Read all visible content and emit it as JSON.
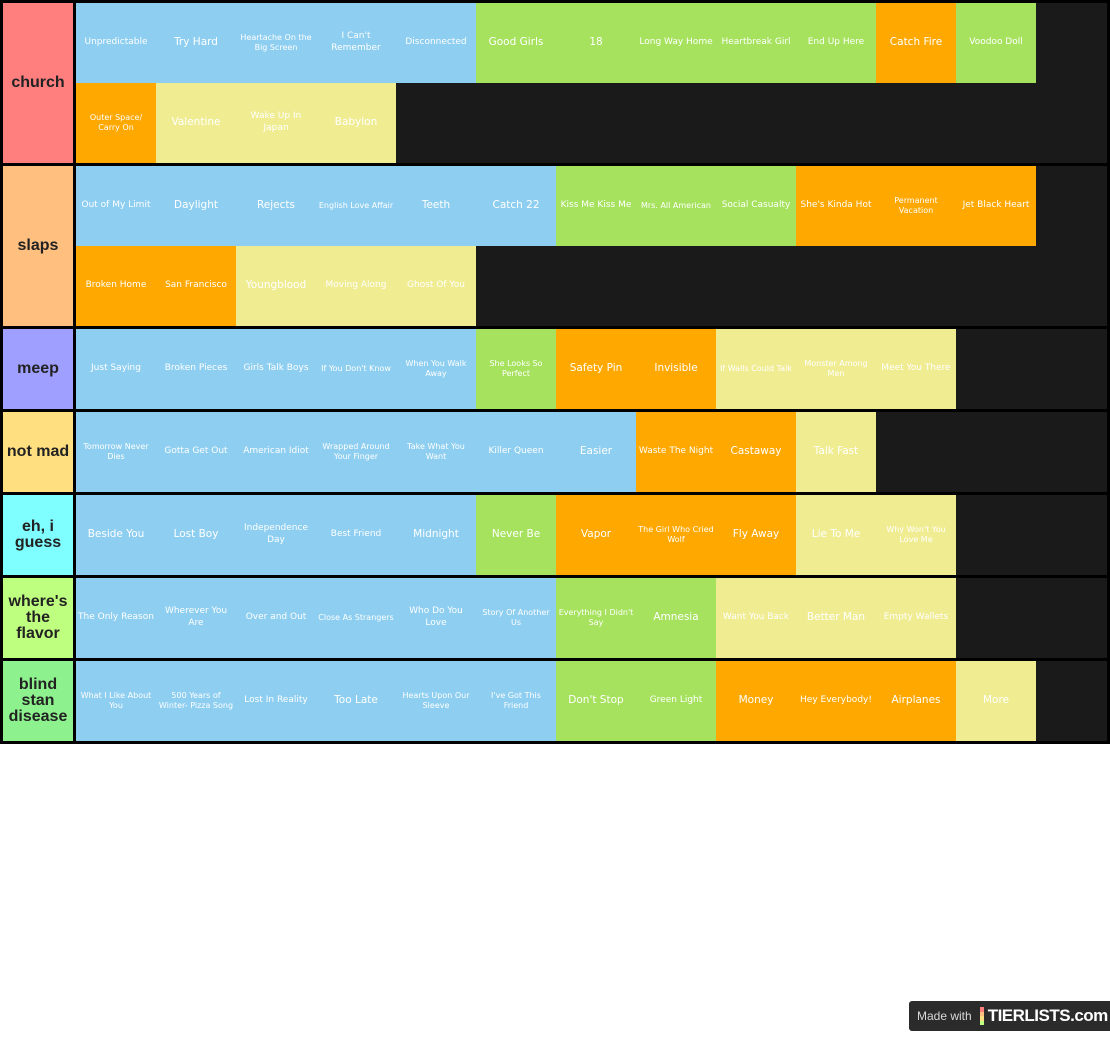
{
  "colors": {
    "blue": "#8ecef0",
    "green": "#a6e25e",
    "orange": "#fea800",
    "yellow": "#f0ec92"
  },
  "tiers": [
    {
      "label": "church",
      "color": "#ff7f7f",
      "items": [
        {
          "text": "Unpredictable",
          "color": "blue"
        },
        {
          "text": "Try Hard",
          "color": "blue"
        },
        {
          "text": "Heartache On the Big Screen",
          "color": "blue"
        },
        {
          "text": "I Can't Remember",
          "color": "blue"
        },
        {
          "text": "Disconnected",
          "color": "blue"
        },
        {
          "text": "Good Girls",
          "color": "green"
        },
        {
          "text": "18",
          "color": "green"
        },
        {
          "text": "Long Way Home",
          "color": "green"
        },
        {
          "text": "Heartbreak Girl",
          "color": "green"
        },
        {
          "text": "End Up Here",
          "color": "green"
        },
        {
          "text": "Catch Fire",
          "color": "orange"
        },
        {
          "text": "Voodoo Doll",
          "color": "green"
        },
        {
          "text": "Outer Space/ Carry On",
          "color": "orange"
        },
        {
          "text": "Valentine",
          "color": "yellow"
        },
        {
          "text": "Wake Up In Japan",
          "color": "yellow"
        },
        {
          "text": "Babylon",
          "color": "yellow"
        }
      ]
    },
    {
      "label": "slaps",
      "color": "#ffbf7f",
      "items": [
        {
          "text": "Out of My Limit",
          "color": "blue"
        },
        {
          "text": "Daylight",
          "color": "blue"
        },
        {
          "text": "Rejects",
          "color": "blue"
        },
        {
          "text": "English Love Affair",
          "color": "blue"
        },
        {
          "text": "Teeth",
          "color": "blue"
        },
        {
          "text": "Catch 22",
          "color": "blue"
        },
        {
          "text": "Kiss Me Kiss Me",
          "color": "green"
        },
        {
          "text": "Mrs. All American",
          "color": "green"
        },
        {
          "text": "Social Casualty",
          "color": "green"
        },
        {
          "text": "She's Kinda Hot",
          "color": "orange"
        },
        {
          "text": "Permanent Vacation",
          "color": "orange"
        },
        {
          "text": "Jet Black Heart",
          "color": "orange"
        },
        {
          "text": "Broken Home",
          "color": "orange"
        },
        {
          "text": "San Francisco",
          "color": "orange"
        },
        {
          "text": "Youngblood",
          "color": "yellow"
        },
        {
          "text": "Moving Along",
          "color": "yellow"
        },
        {
          "text": "Ghost Of You",
          "color": "yellow"
        }
      ]
    },
    {
      "label": "meep",
      "color": "#9f9fff",
      "items": [
        {
          "text": "Just Saying",
          "color": "blue"
        },
        {
          "text": "Broken Pieces",
          "color": "blue"
        },
        {
          "text": "Girls Talk Boys",
          "color": "blue"
        },
        {
          "text": "If You Don't Know",
          "color": "blue"
        },
        {
          "text": "When You Walk Away",
          "color": "blue"
        },
        {
          "text": "She Looks So Perfect",
          "color": "green"
        },
        {
          "text": "Safety Pin",
          "color": "orange"
        },
        {
          "text": "Invisible",
          "color": "orange"
        },
        {
          "text": "If Walls Could Talk",
          "color": "yellow"
        },
        {
          "text": "Monster Among Men",
          "color": "yellow"
        },
        {
          "text": "Meet You There",
          "color": "yellow"
        }
      ]
    },
    {
      "label": "not mad",
      "color": "#ffdf80",
      "items": [
        {
          "text": "Tomorrow Never Dies",
          "color": "blue"
        },
        {
          "text": "Gotta Get Out",
          "color": "blue"
        },
        {
          "text": "American Idiot",
          "color": "blue"
        },
        {
          "text": "Wrapped Around Your Finger",
          "color": "blue"
        },
        {
          "text": "Take What You Want",
          "color": "blue"
        },
        {
          "text": "Killer Queen",
          "color": "blue"
        },
        {
          "text": "Easier",
          "color": "blue"
        },
        {
          "text": "Waste The Night",
          "color": "orange"
        },
        {
          "text": "Castaway",
          "color": "orange"
        },
        {
          "text": "Talk Fast",
          "color": "yellow"
        }
      ]
    },
    {
      "label": "eh, i guess",
      "color": "#7fffff",
      "items": [
        {
          "text": "Beside You",
          "color": "blue"
        },
        {
          "text": "Lost Boy",
          "color": "blue"
        },
        {
          "text": "Independence Day",
          "color": "blue"
        },
        {
          "text": "Best Friend",
          "color": "blue"
        },
        {
          "text": "Midnight",
          "color": "blue"
        },
        {
          "text": "Never Be",
          "color": "green"
        },
        {
          "text": "Vapor",
          "color": "orange"
        },
        {
          "text": "The Girl Who Cried Wolf",
          "color": "orange"
        },
        {
          "text": "Fly Away",
          "color": "orange"
        },
        {
          "text": "Lie To Me",
          "color": "yellow"
        },
        {
          "text": "Why Won't You Love Me",
          "color": "yellow"
        }
      ]
    },
    {
      "label": "where's the flavor",
      "color": "#bfff7f",
      "items": [
        {
          "text": "The Only Reason",
          "color": "blue"
        },
        {
          "text": "Wherever You Are",
          "color": "blue"
        },
        {
          "text": "Over and Out",
          "color": "blue"
        },
        {
          "text": "Close As Strangers",
          "color": "blue"
        },
        {
          "text": "Who Do You Love",
          "color": "blue"
        },
        {
          "text": "Story Of Another Us",
          "color": "blue"
        },
        {
          "text": "Everything I Didn't Say",
          "color": "green"
        },
        {
          "text": "Amnesia",
          "color": "green"
        },
        {
          "text": "Want You Back",
          "color": "yellow"
        },
        {
          "text": "Better Man",
          "color": "yellow"
        },
        {
          "text": "Empty Wallets",
          "color": "yellow"
        }
      ]
    },
    {
      "label": "blind stan disease",
      "color": "#8df28d",
      "items": [
        {
          "text": "What I Like About You",
          "color": "blue"
        },
        {
          "text": "500 Years of Winter- Pizza Song",
          "color": "blue"
        },
        {
          "text": "Lost In Reality",
          "color": "blue"
        },
        {
          "text": "Too Late",
          "color": "blue"
        },
        {
          "text": "Hearts Upon Our Sleeve",
          "color": "blue"
        },
        {
          "text": "I've Got This Friend",
          "color": "blue"
        },
        {
          "text": "Don't Stop",
          "color": "green"
        },
        {
          "text": "Green Light",
          "color": "green"
        },
        {
          "text": "Money",
          "color": "orange"
        },
        {
          "text": "Hey Everybody!",
          "color": "orange"
        },
        {
          "text": "Airplanes",
          "color": "orange"
        },
        {
          "text": "More",
          "color": "yellow"
        }
      ]
    }
  ],
  "watermark": {
    "prefix": "Made with",
    "logo": "TIERLISTS.com"
  }
}
